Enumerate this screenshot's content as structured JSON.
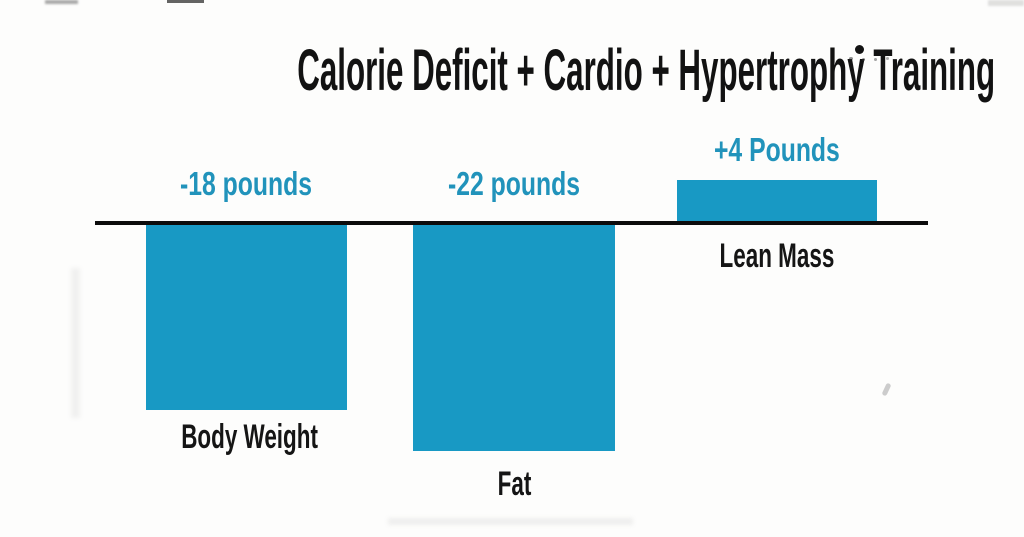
{
  "colors": {
    "bar": "#1899c4",
    "value_label": "#2193bb",
    "category_label": "#151515",
    "baseline": "#0c0c0c",
    "background": "#fdfdfc",
    "title": "#121212"
  },
  "chart_data": {
    "type": "bar",
    "title": "Calorie Deficit + Cardio + Hypertrophy Training",
    "categories": [
      "Body Weight",
      "Fat",
      "Lean Mass"
    ],
    "values": [
      -18,
      -22,
      4
    ],
    "value_labels": [
      "-18 pounds",
      "-22 pounds",
      "+4 Pounds"
    ],
    "unit": "pounds",
    "baseline_value": 0,
    "ylim": [
      -24,
      6
    ],
    "grid": false,
    "legend": false,
    "orientation": "vertical",
    "bar_color": "#1899c4"
  }
}
